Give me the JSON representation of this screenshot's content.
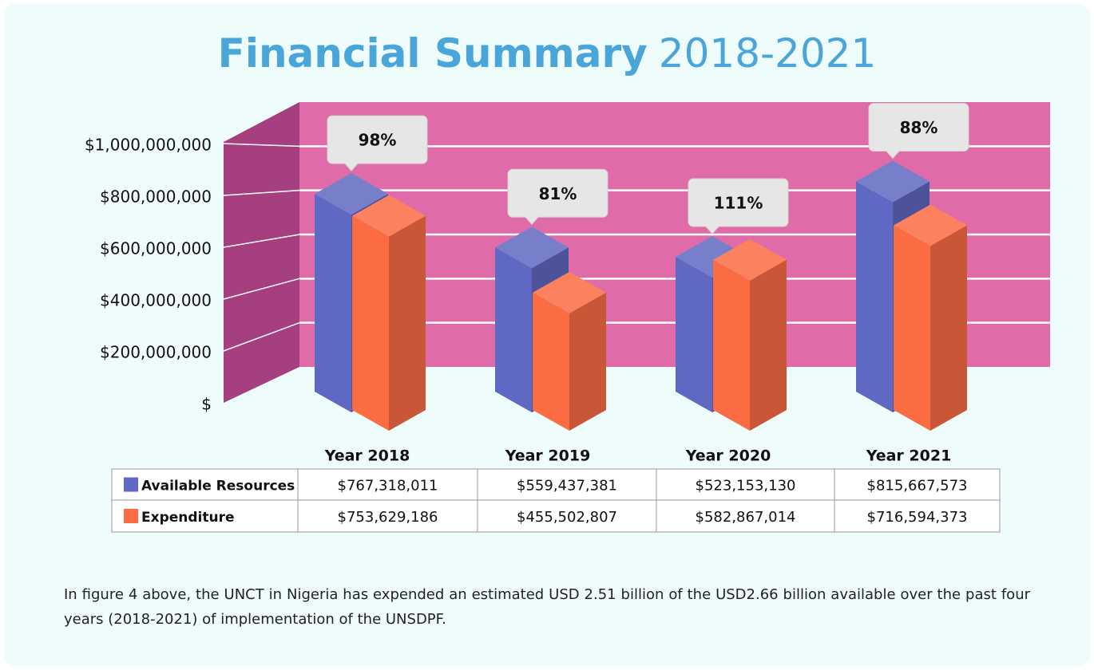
{
  "chart_data": {
    "type": "bar3d",
    "title": "Financial Summary",
    "subtitle": "2018-2021",
    "categories": [
      "Year 2018",
      "Year 2019",
      "Year 2020",
      "Year 2021"
    ],
    "series": [
      {
        "name": "Available Resources",
        "color": "#5f68c2",
        "values": [
          767318011,
          559437381,
          523153130,
          815667573
        ],
        "value_labels": [
          "$767,318,011",
          "$559,437,381",
          "$523,153,130",
          "$815,667,573"
        ]
      },
      {
        "name": "Expenditure",
        "color": "#fb6c43",
        "values": [
          753629186,
          455502807,
          582867014,
          716594373
        ],
        "value_labels": [
          "$753,629,186",
          "$455,502,807",
          "$582,867,014",
          "$716,594,373"
        ]
      }
    ],
    "percentages": {
      "values": [
        98,
        81,
        111,
        88
      ],
      "value_labels": [
        "98%",
        "81%",
        "111%",
        "88%"
      ]
    },
    "ylim": [
      0,
      1200000000
    ],
    "yticks": [
      {
        "value": 0,
        "label": "$"
      },
      {
        "value": 200000000,
        "label": "$200,000,000"
      },
      {
        "value": 400000000,
        "label": "$400,000,000"
      },
      {
        "value": 600000000,
        "label": "$600,000,000"
      },
      {
        "value": 800000000,
        "label": "$800,000,000"
      },
      {
        "value": 1000000000,
        "label": "$1,000,000,000"
      }
    ],
    "grid": true
  },
  "caption": "In figure 4 above, the UNCT in Nigeria has expended an estimated USD 2.51 billion of the USD2.66 billion available over the past four years (2018-2021) of implementation of the UNSDPF."
}
